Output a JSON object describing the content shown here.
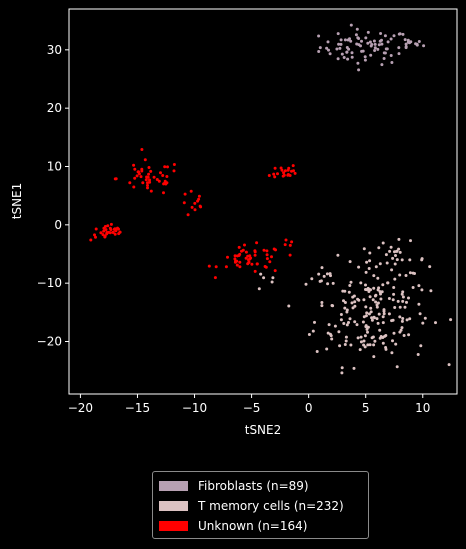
{
  "chart_data": {
    "type": "scatter",
    "title": "",
    "xlabel": "tSNE2",
    "ylabel": "tSNE1",
    "xlim": [
      -21,
      13
    ],
    "ylim": [
      -29,
      37
    ],
    "xticks": [
      -20,
      -15,
      -10,
      -5,
      0,
      5,
      10
    ],
    "yticks": [
      -20,
      -10,
      0,
      10,
      20,
      30
    ],
    "grid": false,
    "legend_position": "below-center",
    "background": "#000000",
    "series": [
      {
        "name": "Fibroblasts (n=89)",
        "color": "#b7a0b2",
        "clusters": [
          {
            "cx": 5.0,
            "cy": 30.5,
            "sx": 2.0,
            "sy": 1.5,
            "n": 77
          },
          {
            "cx": 8.8,
            "cy": 31.0,
            "sx": 0.6,
            "sy": 0.5,
            "n": 12
          }
        ]
      },
      {
        "name": "T memory cells (n=232)",
        "color": "#dcc2c2",
        "clusters": [
          {
            "cx": 5.5,
            "cy": -15.0,
            "sx": 2.5,
            "sy": 4.5,
            "n": 190
          },
          {
            "cx": 7.5,
            "cy": -6.0,
            "sx": 1.5,
            "sy": 1.5,
            "n": 30
          },
          {
            "cx": 0.8,
            "cy": -8.5,
            "sx": 0.6,
            "sy": 0.6,
            "n": 8
          },
          {
            "cx": -3.5,
            "cy": -9.5,
            "sx": 0.6,
            "sy": 0.8,
            "n": 4
          }
        ]
      },
      {
        "name": "Unknown (n=164)",
        "color": "#ff0000",
        "clusters": [
          {
            "cx": -17.5,
            "cy": -1.3,
            "sx": 0.8,
            "sy": 0.7,
            "n": 33
          },
          {
            "cx": -14.0,
            "cy": 8.0,
            "sx": 1.4,
            "sy": 1.5,
            "n": 45
          },
          {
            "cx": -10.0,
            "cy": 3.5,
            "sx": 0.6,
            "sy": 1.2,
            "n": 12
          },
          {
            "cx": -5.0,
            "cy": -6.0,
            "sx": 1.4,
            "sy": 1.2,
            "n": 50
          },
          {
            "cx": -1.8,
            "cy": 9.2,
            "sx": 0.4,
            "sy": 0.5,
            "n": 16
          },
          {
            "cx": -2.0,
            "cy": -2.8,
            "sx": 0.4,
            "sy": 0.4,
            "n": 4
          },
          {
            "cx": -3.0,
            "cy": 8.5,
            "sx": 0.2,
            "sy": 0.2,
            "n": 4
          }
        ]
      }
    ]
  }
}
